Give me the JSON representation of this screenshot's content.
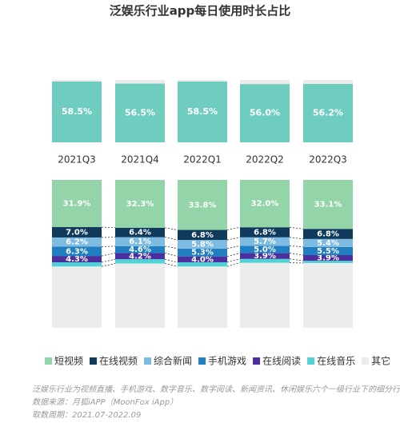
{
  "chart_data": [
    {
      "type": "stacked_bar",
      "title": "泛娱乐行业app每日使用时长占比",
      "categories": [
        "2021Q3",
        "2021Q4",
        "2022Q1",
        "2022Q2",
        "2022Q3"
      ],
      "series": [
        {
          "color": "#6fcdbf",
          "values": [
            58.5,
            56.5,
            58.5,
            56.0,
            56.2
          ],
          "value_labels": [
            "58.5%",
            "56.5%",
            "58.5%",
            "56.0%",
            "56.2%"
          ]
        }
      ],
      "background_color": "#ececec"
    },
    {
      "type": "stacked_bar",
      "series": [
        {
          "name": "短视频",
          "color": "#93d5a8",
          "values": [
            31.9,
            32.3,
            33.8,
            32.0,
            33.1
          ],
          "value_labels": [
            "31.9%",
            "32.3%",
            "33.8%",
            "32.0%",
            "33.1%"
          ]
        },
        {
          "name": "在线视频",
          "color": "#0f3a5c",
          "values": [
            7.0,
            6.4,
            6.8,
            6.8,
            6.8
          ],
          "value_labels": [
            "7.0%",
            "6.4%",
            "6.8%",
            "6.8%",
            "6.8%"
          ]
        },
        {
          "name": "综合新闻",
          "color": "#7dbbe3",
          "values": [
            6.2,
            6.1,
            5.8,
            5.7,
            5.4
          ],
          "value_labels": [
            "6.2%",
            "6.1%",
            "5.8%",
            "5.7%",
            "5.4%"
          ]
        },
        {
          "name": "手机游戏",
          "color": "#1f7fc1",
          "values": [
            6.3,
            4.6,
            5.3,
            5.0,
            5.5
          ],
          "value_labels": [
            "6.3%",
            "4.6%",
            "5.3%",
            "5.0%",
            "5.5%"
          ]
        },
        {
          "name": "在线阅读",
          "color": "#4b2f9e",
          "values": [
            4.3,
            4.2,
            4.0,
            3.9,
            3.9
          ],
          "value_labels": [
            "4.3%",
            "4.2%",
            "4.0%",
            "3.9%",
            "3.9%"
          ]
        },
        {
          "name": "在线音乐",
          "color": "#4fd3d6",
          "values": [
            2.8,
            2.9,
            2.8,
            2.6,
            1.5
          ]
        },
        {
          "name": "其它",
          "color": "#ececec",
          "values": [
            41.5,
            43.5,
            41.5,
            44.0,
            43.8
          ]
        }
      ]
    },
    {
      "notes": [
        "泛娱乐行业为视频直播、手机游戏、数字音乐、数字阅读、新闻资讯、休闲娱乐六个一级行业下的细分行业",
        "数据来源：月狐iAPP（MoonFox iApp）",
        "取数周期：2021.07-2022.09"
      ]
    }
  ]
}
